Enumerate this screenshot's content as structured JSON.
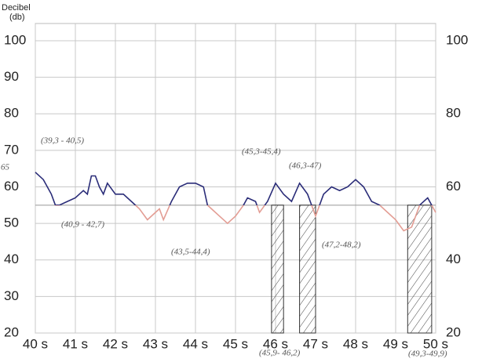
{
  "chart_data": {
    "type": "line",
    "y_label_line1": "Decibel",
    "y_label_line2": "(db)",
    "x": [
      40.0,
      40.2,
      40.4,
      40.5,
      40.6,
      40.8,
      41.0,
      41.2,
      41.3,
      41.4,
      41.5,
      41.6,
      41.7,
      41.8,
      42.0,
      42.2,
      42.3,
      42.4,
      42.6,
      42.8,
      43.0,
      43.1,
      43.2,
      43.4,
      43.6,
      43.8,
      44.0,
      44.2,
      44.3,
      44.4,
      44.6,
      44.8,
      45.0,
      45.2,
      45.3,
      45.5,
      45.6,
      45.8,
      46.0,
      46.2,
      46.4,
      46.6,
      46.8,
      47.0,
      47.2,
      47.4,
      47.6,
      47.8,
      48.0,
      48.2,
      48.4,
      48.6,
      48.8,
      49.0,
      49.2,
      49.4,
      49.6,
      49.8,
      50.0
    ],
    "values": [
      64,
      62,
      58,
      55,
      55,
      56,
      57,
      59,
      58,
      63,
      63,
      60,
      58,
      61,
      58,
      58,
      57,
      56,
      54,
      51,
      53,
      54,
      51,
      56,
      60,
      61,
      61,
      60,
      55,
      54,
      52,
      50,
      52,
      55,
      57,
      56,
      53,
      56,
      61,
      58,
      56,
      61,
      58,
      52,
      58,
      60,
      59,
      60,
      62,
      60,
      56,
      55,
      53,
      51,
      48,
      49,
      55,
      57,
      53
    ],
    "threshold": 55,
    "color_above": "#2a2c78",
    "color_below": "#e39d94",
    "hatched_ranges": [
      [
        45.9,
        46.2
      ],
      [
        46.6,
        47.0
      ],
      [
        49.3,
        49.9
      ]
    ],
    "xlim": [
      40,
      50
    ],
    "xticks": [
      {
        "value": 40,
        "label": "40 s"
      },
      {
        "value": 41,
        "label": "41 s"
      },
      {
        "value": 42,
        "label": "42 s"
      },
      {
        "value": 43,
        "label": "43 s"
      },
      {
        "value": 44,
        "label": "44 s"
      },
      {
        "value": 45,
        "label": "45 s"
      },
      {
        "value": 46,
        "label": "46 s"
      },
      {
        "value": 47,
        "label": "47 s"
      },
      {
        "value": 48,
        "label": "48 s"
      },
      {
        "value": 49,
        "label": "49 s"
      },
      {
        "value": 50,
        "label": "50 s"
      }
    ],
    "ylim": [
      20,
      100
    ],
    "yticks": [
      20,
      30,
      40,
      50,
      60,
      70,
      80,
      90,
      100
    ],
    "y2lim": [
      20,
      100
    ],
    "y2ticks": [
      20,
      40,
      60,
      80,
      100
    ],
    "grid": true,
    "annotations": [
      "(39,3 - 40,5)",
      "(40,9 - 42,7)",
      "(43,5-44,4)",
      "(45,3-45,4)",
      "(46,3-47)",
      "(47,2-48,2)",
      "(45,9- 46,2)",
      "(49,3-49,9)",
      "65"
    ]
  }
}
